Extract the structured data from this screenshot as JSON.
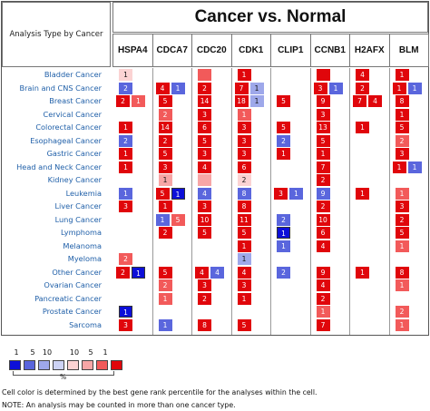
{
  "header": {
    "analysis_type": "Analysis Type by Cancer",
    "title": "Cancer vs. Normal"
  },
  "chart_data": {
    "type": "heatmap",
    "title": "Cancer vs. Normal",
    "genes": [
      "HSPA4",
      "CDCA7",
      "CDC20",
      "CDK1",
      "CLIP1",
      "CCNB1",
      "H2AFX",
      "BLM"
    ],
    "cancers": [
      "Bladder Cancer",
      "Brain and CNS Cancer",
      "Breast Cancer",
      "Cervical Cancer",
      "Colorectal Cancer",
      "Esophageal Cancer",
      "Gastric Cancer",
      "Head and Neck Cancer",
      "Kidney Cancer",
      "Leukemia",
      "Liver Cancer",
      "Lung Cancer",
      "Lymphoma",
      "Melanoma",
      "Myeloma",
      "Other Cancer",
      "Ovarian Cancer",
      "Pancreatic Cancer",
      "Prostate Cancer",
      "Sarcoma"
    ],
    "cells": [
      [
        [
          {
            "d": "up",
            "v": "1",
            "s": 3
          }
        ],
        [],
        [
          {
            "d": "up",
            "v": "",
            "s": 1
          }
        ],
        [
          {
            "d": "up",
            "v": "1",
            "s": 0
          }
        ],
        [],
        [
          {
            "d": "up",
            "v": "",
            "s": 0
          }
        ],
        [
          {
            "d": "up",
            "v": "4",
            "s": 0
          }
        ],
        [
          {
            "d": "up",
            "v": "1",
            "s": 0
          }
        ]
      ],
      [
        [
          {
            "d": "down",
            "v": "2",
            "s": 1
          }
        ],
        [
          {
            "d": "up",
            "v": "4",
            "s": 0
          },
          {
            "d": "down",
            "v": "1",
            "s": 1
          }
        ],
        [
          {
            "d": "up",
            "v": "2",
            "s": 0
          }
        ],
        [
          {
            "d": "up",
            "v": "7",
            "s": 0
          },
          {
            "d": "down",
            "v": "1",
            "s": 2
          }
        ],
        [],
        [
          {
            "d": "up",
            "v": "3",
            "s": 0
          },
          {
            "d": "down",
            "v": "1",
            "s": 1
          }
        ],
        [
          {
            "d": "up",
            "v": "2",
            "s": 0
          }
        ],
        [
          {
            "d": "up",
            "v": "1",
            "s": 0
          },
          {
            "d": "down",
            "v": "1",
            "s": 1
          }
        ]
      ],
      [
        [
          {
            "d": "up",
            "v": "2",
            "s": 0
          },
          {
            "d": "up",
            "v": "1",
            "s": 1
          }
        ],
        [
          {
            "d": "up",
            "v": "5",
            "s": 0
          }
        ],
        [
          {
            "d": "up",
            "v": "14",
            "s": 0
          }
        ],
        [
          {
            "d": "up",
            "v": "18",
            "s": 0
          },
          {
            "d": "down",
            "v": "1",
            "s": 2
          }
        ],
        [
          {
            "d": "up",
            "v": "5",
            "s": 0
          }
        ],
        [
          {
            "d": "up",
            "v": "9",
            "s": 0
          }
        ],
        [
          {
            "d": "up",
            "v": "7",
            "s": 0
          },
          {
            "d": "up",
            "v": "4",
            "s": 0
          }
        ],
        [
          {
            "d": "up",
            "v": "8",
            "s": 0
          }
        ]
      ],
      [
        [],
        [
          {
            "d": "up",
            "v": "2",
            "s": 1
          }
        ],
        [
          {
            "d": "up",
            "v": "3",
            "s": 0
          }
        ],
        [
          {
            "d": "up",
            "v": "1",
            "s": 1
          }
        ],
        [],
        [
          {
            "d": "up",
            "v": "3",
            "s": 0
          }
        ],
        [],
        [
          {
            "d": "up",
            "v": "1",
            "s": 0
          }
        ]
      ],
      [
        [
          {
            "d": "up",
            "v": "1",
            "s": 0
          }
        ],
        [
          {
            "d": "up",
            "v": "14",
            "s": 0
          }
        ],
        [
          {
            "d": "up",
            "v": "6",
            "s": 0
          }
        ],
        [
          {
            "d": "up",
            "v": "3",
            "s": 0
          }
        ],
        [
          {
            "d": "up",
            "v": "5",
            "s": 0
          }
        ],
        [
          {
            "d": "up",
            "v": "13",
            "s": 0
          }
        ],
        [
          {
            "d": "up",
            "v": "1",
            "s": 0
          }
        ],
        [
          {
            "d": "up",
            "v": "5",
            "s": 0
          }
        ]
      ],
      [
        [
          {
            "d": "down",
            "v": "2",
            "s": 1
          }
        ],
        [
          {
            "d": "up",
            "v": "2",
            "s": 0
          }
        ],
        [
          {
            "d": "up",
            "v": "5",
            "s": 0
          }
        ],
        [
          {
            "d": "up",
            "v": "3",
            "s": 0
          }
        ],
        [
          {
            "d": "down",
            "v": "2",
            "s": 1
          }
        ],
        [
          {
            "d": "up",
            "v": "5",
            "s": 0
          }
        ],
        [],
        [
          {
            "d": "up",
            "v": "2",
            "s": 1
          }
        ]
      ],
      [
        [
          {
            "d": "up",
            "v": "1",
            "s": 0
          }
        ],
        [
          {
            "d": "up",
            "v": "5",
            "s": 0
          }
        ],
        [
          {
            "d": "up",
            "v": "3",
            "s": 0
          }
        ],
        [
          {
            "d": "up",
            "v": "3",
            "s": 0
          }
        ],
        [
          {
            "d": "up",
            "v": "1",
            "s": 0
          }
        ],
        [
          {
            "d": "up",
            "v": "1",
            "s": 0
          }
        ],
        [],
        [
          {
            "d": "up",
            "v": "3",
            "s": 0
          }
        ]
      ],
      [
        [
          {
            "d": "up",
            "v": "1",
            "s": 0
          }
        ],
        [
          {
            "d": "up",
            "v": "3",
            "s": 0
          }
        ],
        [
          {
            "d": "up",
            "v": "4",
            "s": 0
          }
        ],
        [
          {
            "d": "up",
            "v": "6",
            "s": 0
          }
        ],
        [],
        [
          {
            "d": "up",
            "v": "7",
            "s": 0
          }
        ],
        [],
        [
          {
            "d": "up",
            "v": "1",
            "s": 0
          },
          {
            "d": "down",
            "v": "1",
            "s": 1
          }
        ]
      ],
      [
        [],
        [
          {
            "d": "up",
            "v": "1",
            "s": 2
          }
        ],
        [
          {
            "d": "up",
            "v": "",
            "s": 2
          }
        ],
        [
          {
            "d": "up",
            "v": "2",
            "s": 3
          }
        ],
        [],
        [
          {
            "d": "up",
            "v": "2",
            "s": 0
          }
        ],
        [],
        []
      ],
      [
        [
          {
            "d": "down",
            "v": "1",
            "s": 1
          }
        ],
        [
          {
            "d": "up",
            "v": "5",
            "s": 0
          },
          {
            "d": "down",
            "v": "1",
            "s": 0
          }
        ],
        [
          {
            "d": "down",
            "v": "4",
            "s": 1
          }
        ],
        [
          {
            "d": "down",
            "v": "8",
            "s": 1
          }
        ],
        [
          {
            "d": "up",
            "v": "3",
            "s": 0
          },
          {
            "d": "down",
            "v": "1",
            "s": 1
          }
        ],
        [
          {
            "d": "down",
            "v": "9",
            "s": 1
          }
        ],
        [
          {
            "d": "up",
            "v": "1",
            "s": 0
          }
        ],
        [
          {
            "d": "up",
            "v": "1",
            "s": 1
          }
        ]
      ],
      [
        [
          {
            "d": "up",
            "v": "3",
            "s": 0
          }
        ],
        [
          {
            "d": "up",
            "v": "1",
            "s": 0
          }
        ],
        [
          {
            "d": "up",
            "v": "3",
            "s": 0
          }
        ],
        [
          {
            "d": "up",
            "v": "8",
            "s": 0
          }
        ],
        [],
        [
          {
            "d": "up",
            "v": "2",
            "s": 0
          }
        ],
        [],
        [
          {
            "d": "up",
            "v": "3",
            "s": 0
          }
        ]
      ],
      [
        [],
        [
          {
            "d": "down",
            "v": "1",
            "s": 1
          },
          {
            "d": "up",
            "v": "5",
            "s": 1
          }
        ],
        [
          {
            "d": "up",
            "v": "10",
            "s": 0
          }
        ],
        [
          {
            "d": "up",
            "v": "11",
            "s": 0
          }
        ],
        [
          {
            "d": "down",
            "v": "2",
            "s": 1
          }
        ],
        [
          {
            "d": "up",
            "v": "10",
            "s": 0
          }
        ],
        [],
        [
          {
            "d": "up",
            "v": "2",
            "s": 0
          }
        ]
      ],
      [
        [],
        [
          {
            "d": "up",
            "v": "2",
            "s": 0
          }
        ],
        [
          {
            "d": "up",
            "v": "5",
            "s": 0
          }
        ],
        [
          {
            "d": "up",
            "v": "5",
            "s": 0
          }
        ],
        [
          {
            "d": "down",
            "v": "1",
            "s": 0
          }
        ],
        [
          {
            "d": "up",
            "v": "6",
            "s": 0
          }
        ],
        [],
        [
          {
            "d": "up",
            "v": "5",
            "s": 0
          }
        ]
      ],
      [
        [],
        [],
        [],
        [
          {
            "d": "up",
            "v": "1",
            "s": 0
          }
        ],
        [
          {
            "d": "down",
            "v": "1",
            "s": 1
          }
        ],
        [
          {
            "d": "up",
            "v": "4",
            "s": 0
          }
        ],
        [],
        [
          {
            "d": "up",
            "v": "1",
            "s": 1
          }
        ]
      ],
      [
        [
          {
            "d": "up",
            "v": "2",
            "s": 1
          }
        ],
        [],
        [],
        [
          {
            "d": "down",
            "v": "1",
            "s": 2
          }
        ],
        [],
        [],
        [],
        []
      ],
      [
        [
          {
            "d": "up",
            "v": "2",
            "s": 0
          },
          {
            "d": "down",
            "v": "1",
            "s": 0
          }
        ],
        [
          {
            "d": "up",
            "v": "5",
            "s": 0
          }
        ],
        [
          {
            "d": "up",
            "v": "4",
            "s": 0
          },
          {
            "d": "down",
            "v": "4",
            "s": 1
          }
        ],
        [
          {
            "d": "up",
            "v": "4",
            "s": 0
          }
        ],
        [
          {
            "d": "down",
            "v": "2",
            "s": 1
          }
        ],
        [
          {
            "d": "up",
            "v": "9",
            "s": 0
          }
        ],
        [
          {
            "d": "up",
            "v": "1",
            "s": 0
          }
        ],
        [
          {
            "d": "up",
            "v": "8",
            "s": 0
          }
        ]
      ],
      [
        [],
        [
          {
            "d": "up",
            "v": "2",
            "s": 1
          }
        ],
        [
          {
            "d": "up",
            "v": "3",
            "s": 0
          }
        ],
        [
          {
            "d": "up",
            "v": "3",
            "s": 0
          }
        ],
        [],
        [
          {
            "d": "up",
            "v": "4",
            "s": 0
          }
        ],
        [],
        [
          {
            "d": "up",
            "v": "1",
            "s": 1
          }
        ]
      ],
      [
        [],
        [
          {
            "d": "up",
            "v": "1",
            "s": 1
          }
        ],
        [
          {
            "d": "up",
            "v": "2",
            "s": 0
          }
        ],
        [
          {
            "d": "up",
            "v": "1",
            "s": 0
          }
        ],
        [],
        [
          {
            "d": "up",
            "v": "2",
            "s": 0
          }
        ],
        [],
        []
      ],
      [
        [
          {
            "d": "down",
            "v": "1",
            "s": 0
          }
        ],
        [],
        [],
        [],
        [],
        [
          {
            "d": "up",
            "v": "1",
            "s": 1
          }
        ],
        [],
        [
          {
            "d": "up",
            "v": "2",
            "s": 1
          }
        ]
      ],
      [
        [
          {
            "d": "up",
            "v": "3",
            "s": 0
          }
        ],
        [
          {
            "d": "down",
            "v": "1",
            "s": 1
          }
        ],
        [
          {
            "d": "up",
            "v": "8",
            "s": 0
          }
        ],
        [
          {
            "d": "up",
            "v": "5",
            "s": 0
          }
        ],
        [],
        [
          {
            "d": "up",
            "v": "7",
            "s": 0
          }
        ],
        [],
        [
          {
            "d": "up",
            "v": "1",
            "s": 1
          }
        ]
      ]
    ],
    "legend": {
      "down_labels": [
        "1",
        "5",
        "10"
      ],
      "up_labels": [
        "10",
        "5",
        "1"
      ],
      "percent_symbol": "%"
    }
  },
  "notes": {
    "line1": "Cell color is determined by the best gene rank percentile for the analyses within the cell.",
    "line2": "NOTE: An analysis may be counted in more than one cancer type."
  },
  "colors": {
    "up": [
      "#e0060b",
      "#f25a5a",
      "#f7a6a6",
      "#fbd3d3"
    ],
    "down": [
      "#0d0fd8",
      "#5a66dd",
      "#9ea8ea",
      "#cdd3f5"
    ]
  }
}
